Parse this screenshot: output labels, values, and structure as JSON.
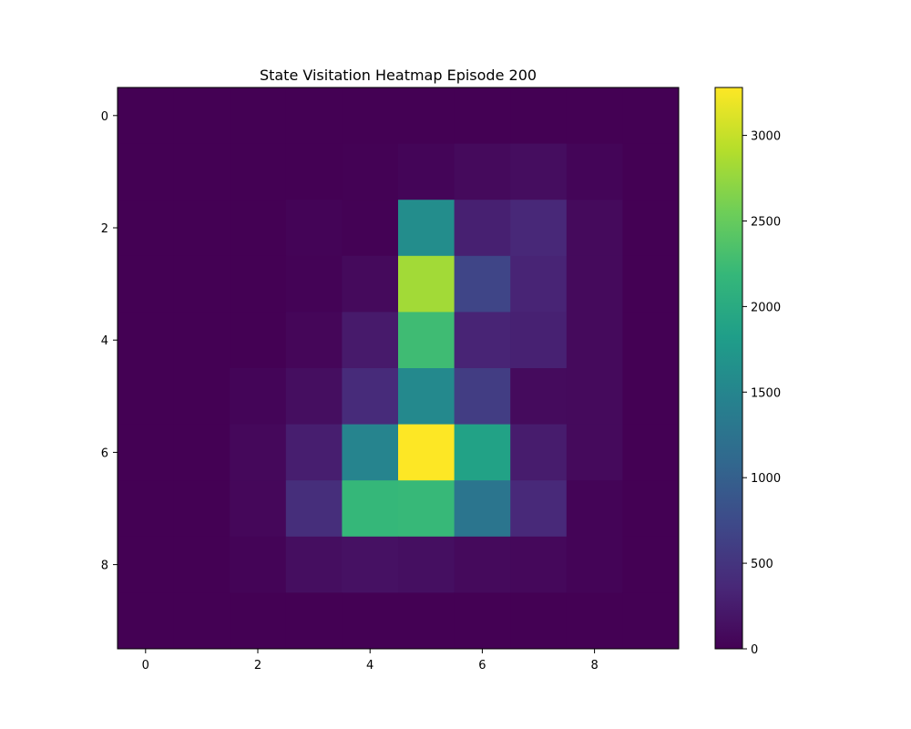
{
  "chart_data": {
    "type": "heatmap",
    "title": "State Visitation Heatmap Episode 200",
    "xlabel": "",
    "ylabel": "",
    "x_ticks": [
      "0",
      "2",
      "4",
      "6",
      "8"
    ],
    "y_ticks": [
      "0",
      "2",
      "4",
      "6",
      "8"
    ],
    "rows": 10,
    "cols": 10,
    "colorscale": "viridis",
    "vmin": 0,
    "vmax": 3280,
    "colorbar_ticks": [
      "0",
      "500",
      "1000",
      "1500",
      "2000",
      "2500",
      "3000"
    ],
    "values": [
      [
        0,
        0,
        0,
        0,
        0,
        0,
        0,
        0,
        0,
        0
      ],
      [
        0,
        0,
        0,
        0,
        10,
        40,
        80,
        110,
        40,
        0
      ],
      [
        0,
        0,
        0,
        30,
        10,
        1600,
        290,
        360,
        80,
        0
      ],
      [
        0,
        0,
        0,
        20,
        80,
        2820,
        690,
        330,
        80,
        0
      ],
      [
        0,
        0,
        0,
        50,
        230,
        2250,
        330,
        300,
        80,
        0
      ],
      [
        0,
        0,
        40,
        120,
        400,
        1550,
        600,
        90,
        80,
        0
      ],
      [
        0,
        0,
        70,
        270,
        1480,
        3280,
        1880,
        250,
        80,
        0
      ],
      [
        0,
        0,
        60,
        430,
        2180,
        2200,
        1280,
        380,
        30,
        0
      ],
      [
        0,
        0,
        30,
        120,
        150,
        130,
        80,
        70,
        30,
        0
      ],
      [
        0,
        0,
        0,
        0,
        0,
        0,
        0,
        0,
        0,
        0
      ]
    ]
  }
}
